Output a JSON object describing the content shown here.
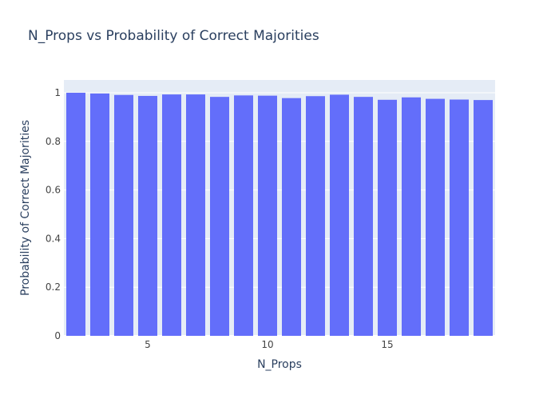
{
  "chart_data": {
    "type": "bar",
    "title": "N_Props vs Probability of Correct Majorities",
    "xlabel": "N_Props",
    "ylabel": "Probability of Correct Majorities",
    "x": [
      2,
      3,
      4,
      5,
      6,
      7,
      8,
      9,
      10,
      11,
      12,
      13,
      14,
      15,
      16,
      17,
      18,
      19
    ],
    "values": [
      1.0,
      0.997,
      0.991,
      0.987,
      0.993,
      0.993,
      0.983,
      0.989,
      0.988,
      0.978,
      0.986,
      0.992,
      0.983,
      0.971,
      0.981,
      0.975,
      0.972,
      0.97
    ],
    "xlim": [
      1.5,
      19.5
    ],
    "ylim": [
      0,
      1.0526
    ],
    "xticks": [
      5,
      10,
      15
    ],
    "yticks": [
      0,
      0.2,
      0.4,
      0.6,
      0.8,
      1
    ],
    "ytick_labels": [
      "0",
      "0.2",
      "0.4",
      "0.6",
      "0.8",
      "1"
    ],
    "grid": true,
    "colors": {
      "bar": "#636efa",
      "plot_bg": "#e5ecf6",
      "grid": "#ffffff",
      "text": "#2a3f5f",
      "tick_text": "#444444"
    }
  }
}
